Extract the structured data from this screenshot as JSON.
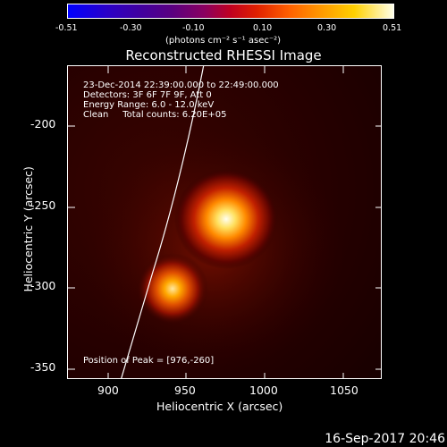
{
  "colorbar": {
    "ticks": [
      "-0.51",
      "-0.30",
      "-0.10",
      "0.10",
      "0.30",
      "0.51"
    ],
    "units": "(photons cm⁻² s⁻¹ asec⁻²)"
  },
  "title": "Reconstructed RHESSI Image",
  "info": {
    "time": "23-Dec-2014 22:39:00.000 to 22:49:00.000",
    "detectors": "Detectors: 3F 6F 7F 9F, Att 0",
    "energy": "Energy Range: 6.0 - 12.0 keV",
    "clean": "Clean     Total counts: 6.20E+05"
  },
  "peak_label": "Position of Peak = [976,-260]",
  "axes": {
    "xlabel": "Heliocentric X (arcsec)",
    "ylabel": "Heliocentric Y (arcsec)",
    "xticks": [
      "900",
      "950",
      "1000",
      "1050"
    ],
    "yticks": [
      "-200",
      "-250",
      "-300",
      "-350"
    ]
  },
  "sources": [
    {
      "name": "main-source",
      "x": 976,
      "y": -260
    },
    {
      "name": "secondary-source",
      "x": 940,
      "y": -302
    }
  ],
  "datestamp": "16-Sep-2017 20:46"
}
